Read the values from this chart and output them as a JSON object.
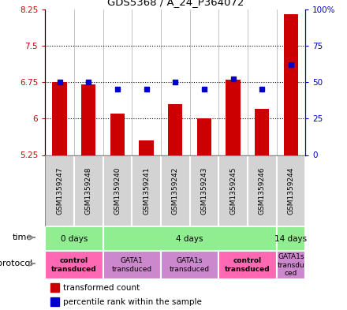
{
  "title": "GDS5368 / A_24_P364072",
  "samples": [
    "GSM1359247",
    "GSM1359248",
    "GSM1359240",
    "GSM1359241",
    "GSM1359242",
    "GSM1359243",
    "GSM1359245",
    "GSM1359246",
    "GSM1359244"
  ],
  "red_values": [
    6.75,
    6.7,
    6.1,
    5.55,
    6.3,
    6.0,
    6.8,
    6.2,
    8.15
  ],
  "blue_values": [
    50,
    50,
    45,
    45,
    50,
    45,
    52,
    45,
    62
  ],
  "ymin": 5.25,
  "ymax": 8.25,
  "yticks_red": [
    5.25,
    6.0,
    6.75,
    7.5,
    8.25
  ],
  "yticks_blue": [
    0,
    25,
    50,
    75,
    100
  ],
  "ytick_labels_red": [
    "5.25",
    "6",
    "6.75",
    "7.5",
    "8.25"
  ],
  "ytick_labels_blue": [
    "0",
    "25",
    "50",
    "75",
    "100%"
  ],
  "dotted_lines_red": [
    6.0,
    6.75,
    7.5
  ],
  "bar_color": "#CC0000",
  "dot_color": "#0000CC",
  "base_value": 5.25,
  "sample_box_color": "#D3D3D3",
  "time_color": "#90EE90",
  "protocol_bold_color": "#FF69B4",
  "protocol_light_color": "#CC88CC",
  "time_data": [
    {
      "label": "0 days",
      "start": 0,
      "end": 2
    },
    {
      "label": "4 days",
      "start": 2,
      "end": 8
    },
    {
      "label": "14 days",
      "start": 8,
      "end": 9
    }
  ],
  "protocol_data": [
    {
      "label": "control\ntransduced",
      "start": 0,
      "end": 2,
      "bold": true
    },
    {
      "label": "GATA1\ntransduced",
      "start": 2,
      "end": 4,
      "bold": false
    },
    {
      "label": "GATA1s\ntransduced",
      "start": 4,
      "end": 6,
      "bold": false
    },
    {
      "label": "control\ntransduced",
      "start": 6,
      "end": 8,
      "bold": true
    },
    {
      "label": "GATA1s\ntransdu\nced",
      "start": 8,
      "end": 9,
      "bold": false
    }
  ]
}
